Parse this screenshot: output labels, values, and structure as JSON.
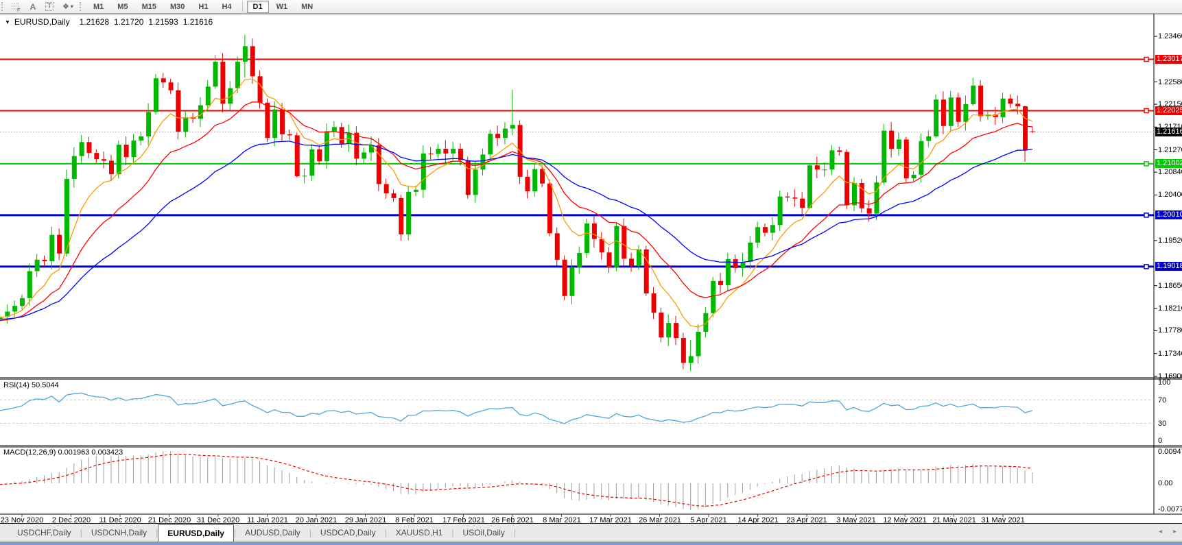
{
  "toolbar": {
    "tools": [
      {
        "name": "fibonacci-tool",
        "glyph": "F"
      },
      {
        "name": "text-tool",
        "glyph": "A"
      },
      {
        "name": "label-tool",
        "glyph": "T"
      },
      {
        "name": "arrows-tool",
        "glyph": "❖",
        "caret": "▾"
      }
    ],
    "timeframes": [
      "M1",
      "M5",
      "M15",
      "M30",
      "H1",
      "H4",
      "D1",
      "W1",
      "MN"
    ],
    "active_timeframe": "D1"
  },
  "title": {
    "dropdown": "▼",
    "symbol": "EURUSD,Daily",
    "open": "1.21628",
    "high": "1.21720",
    "low": "1.21593",
    "close": "1.21616"
  },
  "price_axis": {
    "ticks": [
      "1.23460",
      "1.22580",
      "1.22150",
      "1.21710",
      "1.21270",
      "1.20840",
      "1.20400",
      "1.19520",
      "1.18650",
      "1.18210",
      "1.17780",
      "1.17340",
      "1.16900"
    ]
  },
  "levels": [
    {
      "label": "1.23017",
      "color": "#ee0000",
      "width": 2
    },
    {
      "label": "1.22025",
      "color": "#ee0000",
      "width": 2
    },
    {
      "label": "1.21002",
      "color": "#00cc00",
      "width": 2
    },
    {
      "label": "1.20010",
      "color": "#0000cc",
      "width": 3
    },
    {
      "label": "1.19018",
      "color": "#0000cc",
      "width": 3
    }
  ],
  "current_price": {
    "label": "1.21616",
    "badge_color": "#000000",
    "line_color": "#b0b0b0"
  },
  "chart_data": {
    "type": "candlestick",
    "symbol": "EURUSD",
    "timeframe": "Daily",
    "up_color": "#00b800",
    "down_color": "#ee0000",
    "pre_closes": [
      1.186,
      1.185,
      1.1842,
      1.1865,
      1.1882,
      1.187,
      1.1858,
      1.184,
      1.1825,
      1.1812,
      1.18,
      1.1788,
      1.1775,
      1.179,
      1.1808,
      1.182,
      1.1835,
      1.1822,
      1.181,
      1.1798,
      1.1785,
      1.1772,
      1.176,
      1.1778,
      1.1795,
      1.1812,
      1.1828,
      1.184,
      1.1852,
      1.1838,
      1.1825,
      1.184,
      1.1856,
      1.1868,
      1.185,
      1.1835,
      1.182,
      1.1806,
      1.1792,
      1.178,
      1.1768,
      1.1755,
      1.1742,
      1.173,
      1.1745,
      1.1762,
      1.1778,
      1.176,
      1.1745,
      1.1765,
      1.179,
      1.1818,
      1.184,
      1.1828,
      1.1815,
      1.1802,
      1.18,
      1.1805,
      1.1815,
      1.1826
    ],
    "closes": [
      1.1841,
      1.1893,
      1.1915,
      1.1912,
      1.1963,
      1.1927,
      1.2071,
      1.2115,
      1.2142,
      1.2121,
      1.2109,
      1.2106,
      1.208,
      1.2137,
      1.2113,
      1.2145,
      1.2153,
      1.22,
      1.2265,
      1.2257,
      1.2242,
      1.2162,
      1.219,
      1.2187,
      1.2213,
      1.2249,
      1.2297,
      1.2216,
      1.2246,
      1.2297,
      1.2327,
      1.2269,
      1.2218,
      1.215,
      1.2205,
      1.2157,
      1.2155,
      1.2076,
      1.2077,
      1.2128,
      1.2105,
      1.2163,
      1.2171,
      1.2139,
      1.216,
      1.211,
      1.2122,
      1.2136,
      1.2061,
      1.2043,
      1.2034,
      1.1964,
      1.2046,
      1.205,
      1.212,
      1.2119,
      1.2129,
      1.212,
      1.2129,
      1.2107,
      1.204,
      1.2089,
      1.2118,
      1.2158,
      1.215,
      1.2168,
      1.2175,
      1.2075,
      1.2047,
      1.209,
      1.2062,
      1.1966,
      1.1915,
      1.1845,
      1.19,
      1.1928,
      1.1985,
      1.1955,
      1.1929,
      1.19,
      1.198,
      1.1917,
      1.1903,
      1.1935,
      1.185,
      1.1813,
      1.1765,
      1.1793,
      1.1764,
      1.1716,
      1.1729,
      1.1776,
      1.1812,
      1.1874,
      1.1866,
      1.1916,
      1.1899,
      1.1911,
      1.1948,
      1.1978,
      1.1967,
      1.1982,
      1.2037,
      1.2035,
      1.2033,
      1.2015,
      1.2097,
      1.2089,
      1.2089,
      1.2126,
      1.2123,
      1.202,
      1.2063,
      1.2014,
      1.2004,
      1.2064,
      1.2164,
      1.2129,
      1.2147,
      1.2072,
      1.2079,
      1.2144,
      1.2153,
      1.2224,
      1.2173,
      1.2228,
      1.2181,
      1.2215,
      1.2251,
      1.2192,
      1.2195,
      1.219,
      1.2226,
      1.2216,
      1.2211,
      1.2127,
      1.2162
    ],
    "overrides": {
      "6": {
        "h": 1.2089,
        "l": 1.1921
      },
      "18": {
        "h": 1.2273,
        "l": 1.2195
      },
      "26": {
        "h": 1.231,
        "l": 1.2245
      },
      "30": {
        "h": 1.2349,
        "l": 1.2266
      },
      "37": {
        "h": 1.216,
        "l": 1.2074
      },
      "51": {
        "h": 1.204,
        "l": 1.1952
      },
      "66": {
        "h": 1.2243,
        "l": 1.2155
      },
      "67": {
        "h": 1.2184,
        "l": 1.2061
      },
      "71": {
        "h": 1.207,
        "l": 1.196
      },
      "84": {
        "h": 1.1942,
        "l": 1.1845
      },
      "89": {
        "h": 1.1774,
        "l": 1.1704
      },
      "90": {
        "h": 1.176,
        "l": 1.17
      },
      "106": {
        "h": 1.21,
        "l": 1.2013
      },
      "111": {
        "h": 1.2128,
        "l": 1.2013
      },
      "116": {
        "h": 1.2177,
        "l": 1.206
      },
      "119": {
        "h": 1.2152,
        "l": 1.2065
      },
      "123": {
        "h": 1.2234,
        "l": 1.215
      },
      "128": {
        "h": 1.2266,
        "l": 1.2212
      },
      "135": {
        "h": 1.2212,
        "l": 1.2104
      },
      "136": {
        "o": 1.21628,
        "h": 1.2172,
        "l": 1.21593,
        "c": 1.21616
      }
    }
  },
  "moving_averages": [
    {
      "name": "ma-fast",
      "period": 8,
      "color": "#ff9900"
    },
    {
      "name": "ma-mid",
      "period": 17,
      "color": "#ff0000"
    },
    {
      "name": "ma-slow",
      "period": 34,
      "color": "#0000ff"
    }
  ],
  "rsi": {
    "label": "RSI(14) 50.5044",
    "period": 14,
    "color": "#4da6dd",
    "axis": [
      "100",
      "70",
      "30",
      "0"
    ],
    "guides": [
      "70",
      "30"
    ]
  },
  "macd": {
    "label": "MACD(12,26,9) 0.001963 0.003423",
    "fast": 12,
    "slow": 26,
    "signal": 9,
    "hist_color": "#9c9c9c",
    "signal_color": "#ee0000",
    "axis": [
      "0.009478",
      "0.00",
      "-0.00777"
    ]
  },
  "dates": [
    "23 Nov 2020",
    "2 Dec 2020",
    "11 Dec 2020",
    "21 Dec 2020",
    "31 Dec 2020",
    "11 Jan 2021",
    "20 Jan 2021",
    "29 Jan 2021",
    "8 Feb 2021",
    "17 Feb 2021",
    "26 Feb 2021",
    "8 Mar 2021",
    "17 Mar 2021",
    "26 Mar 2021",
    "5 Apr 2021",
    "14 Apr 2021",
    "23 Apr 2021",
    "3 May 2021",
    "12 May 2021",
    "21 May 2021",
    "31 May 2021"
  ],
  "tabs": {
    "items": [
      "USDCHF,Daily",
      "USDCNH,Daily",
      "EURUSD,Daily",
      "AUDUSD,Daily",
      "USDCAD,Daily",
      "XAUUSD,H1",
      "USOil,Daily"
    ],
    "active": "EURUSD,Daily",
    "scroll_left": "◂",
    "scroll_right": "▸"
  }
}
